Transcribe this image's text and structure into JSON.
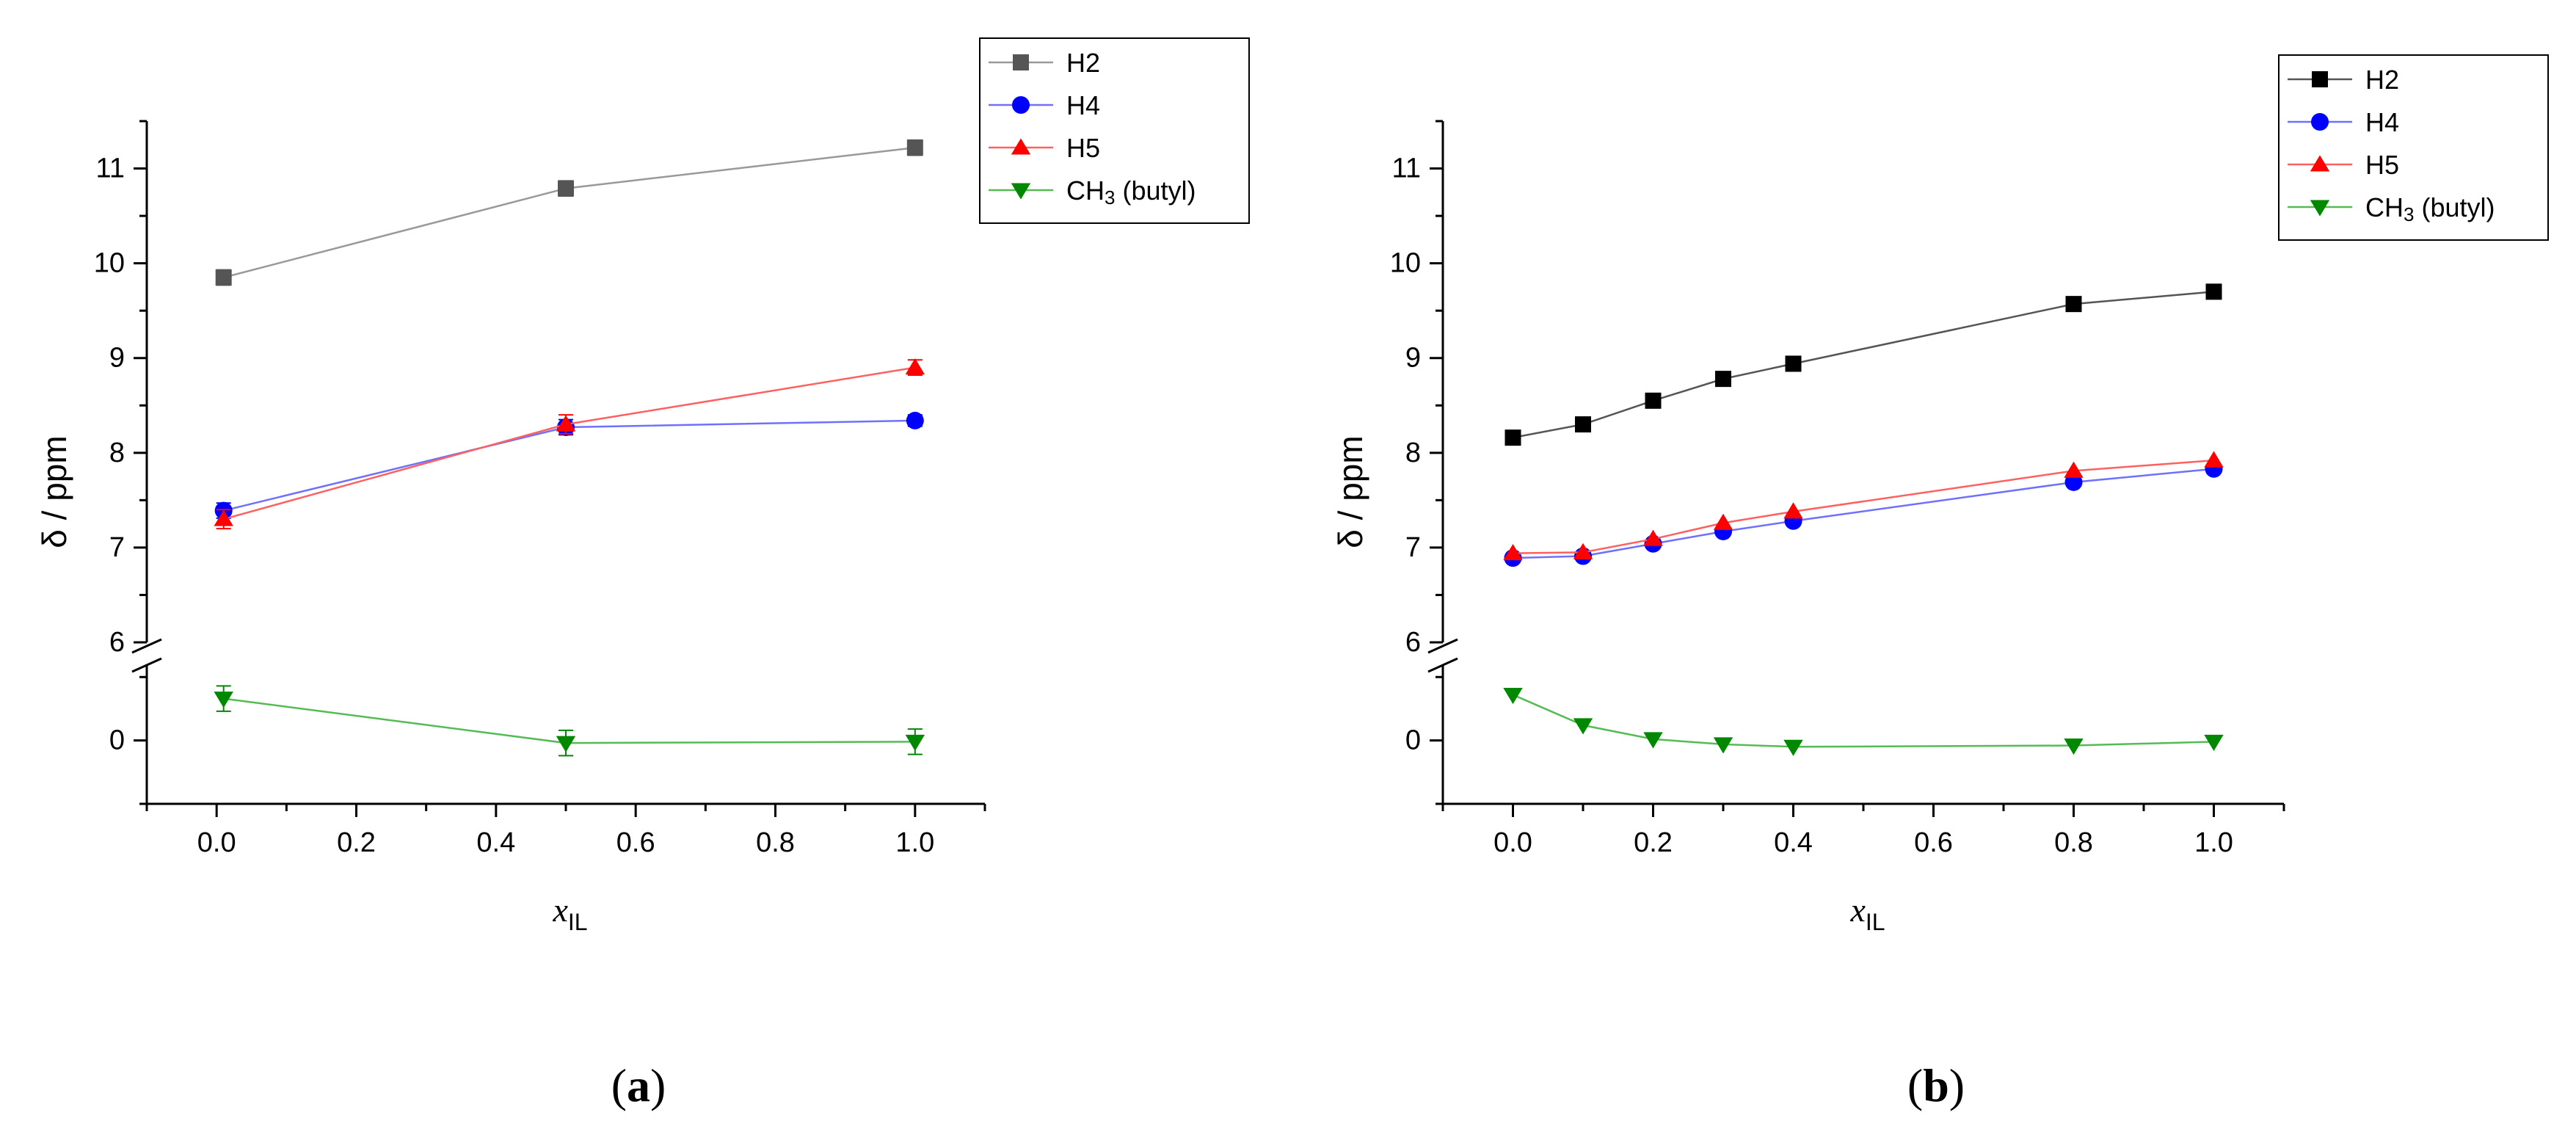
{
  "chart_data": [
    {
      "type": "line",
      "panel_label_open": "(",
      "panel_label_letter": "a",
      "panel_label_close": ")",
      "xlabel_main": "x",
      "xlabel_sub": "IL",
      "ylabel": "δ / ppm",
      "xlim": [
        -0.1,
        1.1
      ],
      "ylim_upper": [
        6,
        11.5
      ],
      "ylim_lower": [
        -0.5,
        0.6
      ],
      "xticks": [
        "0.0",
        "0.2",
        "0.4",
        "0.6",
        "0.8",
        "1.0"
      ],
      "yticks_upper": [
        "6",
        "7",
        "8",
        "9",
        "10",
        "11"
      ],
      "yticks_lower": [
        "0"
      ],
      "legend_position": "top-right",
      "series": [
        {
          "name": "H2",
          "name_sub": "",
          "name_suffix": "",
          "color": "#555555",
          "line_color": "#999999",
          "marker": "square",
          "x": [
            0.01,
            0.5,
            1.0
          ],
          "y": [
            9.85,
            10.79,
            11.22
          ],
          "err": [
            0.08,
            0.08,
            0.08
          ]
        },
        {
          "name": "H4",
          "name_sub": "",
          "name_suffix": "",
          "color": "#0000ff",
          "line_color": "#7070ff",
          "marker": "circle",
          "x": [
            0.01,
            0.5,
            1.0
          ],
          "y": [
            7.39,
            8.27,
            8.34
          ],
          "err": [
            0.08,
            0.08,
            0.06
          ]
        },
        {
          "name": "H5",
          "name_sub": "",
          "name_suffix": "",
          "color": "#ff0000",
          "line_color": "#ff6060",
          "marker": "triangle-up",
          "x": [
            0.01,
            0.5,
            1.0
          ],
          "y": [
            7.3,
            8.3,
            8.9
          ],
          "err": [
            0.1,
            0.1,
            0.08
          ]
        },
        {
          "name": "CH",
          "name_sub": "3",
          "name_suffix": " (butyl)",
          "color": "#008800",
          "line_color": "#55bb55",
          "marker": "triangle-down",
          "x": [
            0.01,
            0.5,
            1.0
          ],
          "y": [
            0.33,
            -0.02,
            -0.01
          ],
          "err": [
            0.1,
            0.1,
            0.1
          ]
        }
      ]
    },
    {
      "type": "line",
      "panel_label_open": "(",
      "panel_label_letter": "b",
      "panel_label_close": ")",
      "xlabel_main": "x",
      "xlabel_sub": "IL",
      "ylabel": "δ / ppm",
      "xlim": [
        -0.1,
        1.1
      ],
      "ylim_upper": [
        6,
        11.5
      ],
      "ylim_lower": [
        -0.5,
        0.6
      ],
      "xticks": [
        "0.0",
        "0.2",
        "0.4",
        "0.6",
        "0.8",
        "1.0"
      ],
      "yticks_upper": [
        "6",
        "7",
        "8",
        "9",
        "10",
        "11"
      ],
      "yticks_lower": [
        "0"
      ],
      "legend_position": "top-right",
      "series": [
        {
          "name": "H2",
          "name_sub": "",
          "name_suffix": "",
          "color": "#000000",
          "line_color": "#555555",
          "marker": "square",
          "x": [
            0.0,
            0.1,
            0.2,
            0.3,
            0.4,
            0.8,
            1.0
          ],
          "y": [
            8.16,
            8.3,
            8.55,
            8.78,
            8.94,
            9.57,
            9.7
          ],
          "err": []
        },
        {
          "name": "H4",
          "name_sub": "",
          "name_suffix": "",
          "color": "#0000ff",
          "line_color": "#7070ff",
          "marker": "circle",
          "x": [
            0.0,
            0.1,
            0.2,
            0.3,
            0.4,
            0.8,
            1.0
          ],
          "y": [
            6.89,
            6.91,
            7.04,
            7.17,
            7.28,
            7.69,
            7.83
          ],
          "err": []
        },
        {
          "name": "H5",
          "name_sub": "",
          "name_suffix": "",
          "color": "#ff0000",
          "line_color": "#ff6060",
          "marker": "triangle-up",
          "x": [
            0.0,
            0.1,
            0.2,
            0.3,
            0.4,
            0.8,
            1.0
          ],
          "y": [
            6.94,
            6.95,
            7.09,
            7.26,
            7.38,
            7.81,
            7.92
          ],
          "err": []
        },
        {
          "name": "CH",
          "name_sub": "3",
          "name_suffix": " (butyl)",
          "color": "#008800",
          "line_color": "#55bb55",
          "marker": "triangle-down",
          "x": [
            0.0,
            0.1,
            0.2,
            0.3,
            0.4,
            0.8,
            1.0
          ],
          "y": [
            0.36,
            0.12,
            0.01,
            -0.03,
            -0.05,
            -0.04,
            -0.01
          ],
          "err": []
        }
      ]
    }
  ]
}
